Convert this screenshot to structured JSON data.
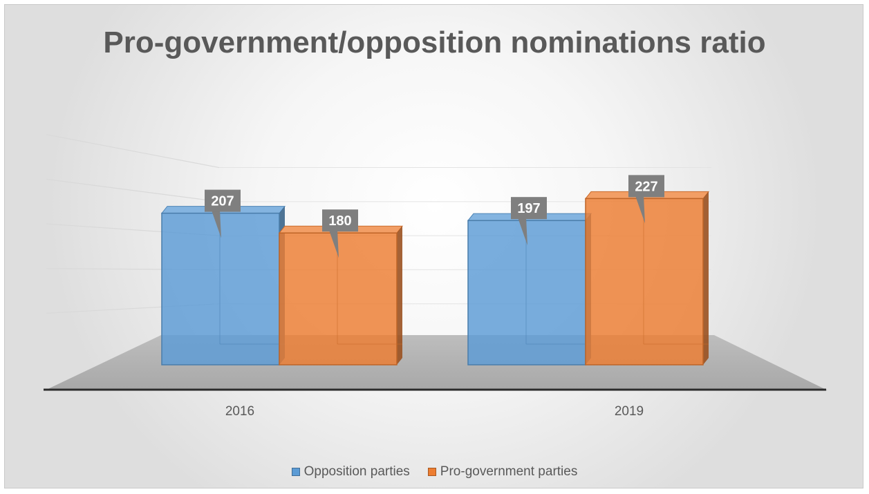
{
  "chart_data": {
    "type": "bar",
    "title": "Pro-government/opposition nominations ratio",
    "categories": [
      "2016",
      "2019"
    ],
    "series": [
      {
        "name": "Opposition parties",
        "values": [
          207,
          197
        ],
        "color": "#5b9bd5"
      },
      {
        "name": "Pro-government parties",
        "values": [
          180,
          227
        ],
        "color": "#ed7d31"
      }
    ],
    "ylim": [
      0,
      250
    ],
    "grid": true,
    "legend_position": "bottom"
  }
}
